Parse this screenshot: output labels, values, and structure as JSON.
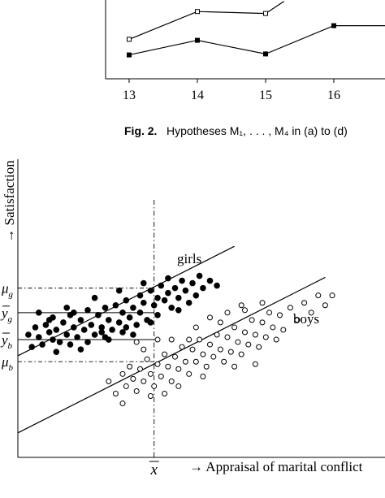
{
  "fig2": {
    "caption_label": "Fig. 2.",
    "caption_text": "Hypotheses M₁, . . . , M₄ in (a) to (d)",
    "x_ticks": [
      "13",
      "14",
      "15",
      "16"
    ],
    "chart_data": {
      "type": "line",
      "categories": [
        13,
        14,
        15,
        16
      ],
      "series": [
        {
          "marker": "open-square",
          "values": [
            1.62,
            2.76,
            2.68,
            3.55
          ]
        },
        {
          "marker": "filled-square",
          "values": [
            0.98,
            1.58,
            1.02,
            2.18
          ]
        }
      ],
      "partial_segment_end": {
        "x": 15.27,
        "y": 3.18
      }
    }
  },
  "fig3": {
    "ylabel": "→ Satisfaction",
    "xlabel": "→ Appraisal of marital conflict",
    "xmean_label": "x",
    "group_labels": {
      "girls": "girls",
      "boys": "boys"
    },
    "level_labels": {
      "mu_g": "μ_g",
      "ybar_g": "y_g",
      "ybar_b": "y_b",
      "mu_b": "μ_b"
    },
    "colors": {
      "girls": "#000000",
      "boys": "#000000"
    },
    "chart_data": {
      "type": "scatter",
      "title": "",
      "xlabel": "→ Appraisal of marital conflict",
      "ylabel": "→ Satisfaction",
      "xlim": [
        0,
        10
      ],
      "ylim": [
        0,
        10
      ],
      "xbar": 3.9,
      "levels": {
        "mu_g": 6.9,
        "ybar_g": 5.9,
        "ybar_b": 4.8,
        "mu_b": 3.9
      },
      "series": [
        {
          "name": "girls",
          "marker": "filled-circle",
          "regression": {
            "intercept": 4.14,
            "slope": 0.72
          },
          "points": [
            [
              0.3,
              5.0
            ],
            [
              0.4,
              4.5
            ],
            [
              0.5,
              5.3
            ],
            [
              0.6,
              4.9
            ],
            [
              0.7,
              4.6
            ],
            [
              0.8,
              5.4
            ],
            [
              0.9,
              5.1
            ],
            [
              1.0,
              4.8
            ],
            [
              1.0,
              5.7
            ],
            [
              1.1,
              5.2
            ],
            [
              1.2,
              4.7
            ],
            [
              1.3,
              5.5
            ],
            [
              1.4,
              5.0
            ],
            [
              1.5,
              5.8
            ],
            [
              1.5,
              4.6
            ],
            [
              1.6,
              5.3
            ],
            [
              1.7,
              4.9
            ],
            [
              1.8,
              5.6
            ],
            [
              1.9,
              5.2
            ],
            [
              2.0,
              4.7
            ],
            [
              2.0,
              6.0
            ],
            [
              2.1,
              5.4
            ],
            [
              2.2,
              5.0
            ],
            [
              2.3,
              5.8
            ],
            [
              2.4,
              5.3
            ],
            [
              2.5,
              6.1
            ],
            [
              2.5,
              4.9
            ],
            [
              2.6,
              5.6
            ],
            [
              2.7,
              5.2
            ],
            [
              2.8,
              6.2
            ],
            [
              2.9,
              5.5
            ],
            [
              3.0,
              5.9
            ],
            [
              3.0,
              5.1
            ],
            [
              3.1,
              6.4
            ],
            [
              3.2,
              5.7
            ],
            [
              3.3,
              6.1
            ],
            [
              3.4,
              5.4
            ],
            [
              3.5,
              6.6
            ],
            [
              3.5,
              5.9
            ],
            [
              3.6,
              6.3
            ],
            [
              3.7,
              5.6
            ],
            [
              3.8,
              6.8
            ],
            [
              3.9,
              6.2
            ],
            [
              4.0,
              6.5
            ],
            [
              4.0,
              5.8
            ],
            [
              4.1,
              7.0
            ],
            [
              4.2,
              6.4
            ],
            [
              4.3,
              6.7
            ],
            [
              4.4,
              6.1
            ],
            [
              4.5,
              6.9
            ],
            [
              4.6,
              6.5
            ],
            [
              4.7,
              7.2
            ],
            [
              4.8,
              6.8
            ],
            [
              4.9,
              6.3
            ],
            [
              5.0,
              7.1
            ],
            [
              5.1,
              6.6
            ],
            [
              5.2,
              7.4
            ],
            [
              5.3,
              6.9
            ],
            [
              5.5,
              7.2
            ],
            [
              5.7,
              7.0
            ],
            [
              0.6,
              5.9
            ],
            [
              1.4,
              6.1
            ],
            [
              2.2,
              6.5
            ],
            [
              2.9,
              6.8
            ],
            [
              3.6,
              7.1
            ],
            [
              4.3,
              7.3
            ],
            [
              1.1,
              4.3
            ],
            [
              1.8,
              4.4
            ],
            [
              2.6,
              4.8
            ],
            [
              3.3,
              5.0
            ],
            [
              0.9,
              5.6
            ],
            [
              1.6,
              5.9
            ],
            [
              2.4,
              5.1
            ],
            [
              3.1,
              5.3
            ],
            [
              3.8,
              5.5
            ],
            [
              4.6,
              6.0
            ]
          ]
        },
        {
          "name": "boys",
          "marker": "open-circle",
          "regression": {
            "intercept": 1.0,
            "slope": 0.72
          },
          "points": [
            [
              2.6,
              3.1
            ],
            [
              2.8,
              2.6
            ],
            [
              3.0,
              3.4
            ],
            [
              3.1,
              2.9
            ],
            [
              3.2,
              3.7
            ],
            [
              3.3,
              3.2
            ],
            [
              3.4,
              2.7
            ],
            [
              3.5,
              3.6
            ],
            [
              3.6,
              3.1
            ],
            [
              3.7,
              4.0
            ],
            [
              3.8,
              3.4
            ],
            [
              3.9,
              2.9
            ],
            [
              4.0,
              3.8
            ],
            [
              4.1,
              3.3
            ],
            [
              4.2,
              4.2
            ],
            [
              4.3,
              3.7
            ],
            [
              4.4,
              3.1
            ],
            [
              4.5,
              4.1
            ],
            [
              4.6,
              3.6
            ],
            [
              4.7,
              4.5
            ],
            [
              4.8,
              3.9
            ],
            [
              4.9,
              3.4
            ],
            [
              5.0,
              4.4
            ],
            [
              5.1,
              3.9
            ],
            [
              5.2,
              4.8
            ],
            [
              5.3,
              4.2
            ],
            [
              5.4,
              3.7
            ],
            [
              5.5,
              4.6
            ],
            [
              5.6,
              4.1
            ],
            [
              5.7,
              5.0
            ],
            [
              5.8,
              4.4
            ],
            [
              5.9,
              3.9
            ],
            [
              6.0,
              4.9
            ],
            [
              6.1,
              4.3
            ],
            [
              6.2,
              5.3
            ],
            [
              6.3,
              4.7
            ],
            [
              6.4,
              4.2
            ],
            [
              6.5,
              5.1
            ],
            [
              6.6,
              4.6
            ],
            [
              6.7,
              5.6
            ],
            [
              6.8,
              5.0
            ],
            [
              6.9,
              4.5
            ],
            [
              7.0,
              5.5
            ],
            [
              7.1,
              4.9
            ],
            [
              7.2,
              5.9
            ],
            [
              7.3,
              5.3
            ],
            [
              7.4,
              4.8
            ],
            [
              7.5,
              5.8
            ],
            [
              7.6,
              5.2
            ],
            [
              7.8,
              6.1
            ],
            [
              8.0,
              5.6
            ],
            [
              8.2,
              6.3
            ],
            [
              8.4,
              5.9
            ],
            [
              8.6,
              6.6
            ],
            [
              8.8,
              6.2
            ],
            [
              9.0,
              6.6
            ],
            [
              3.4,
              4.7
            ],
            [
              4.0,
              4.8
            ],
            [
              4.4,
              4.8
            ],
            [
              4.9,
              4.8
            ],
            [
              5.5,
              5.7
            ],
            [
              6.0,
              5.9
            ],
            [
              6.4,
              6.2
            ],
            [
              3.0,
              2.2
            ],
            [
              3.8,
              2.5
            ],
            [
              4.6,
              2.9
            ],
            [
              5.3,
              3.3
            ],
            [
              6.2,
              3.7
            ],
            [
              6.8,
              3.8
            ],
            [
              5.1,
              5.3
            ],
            [
              5.8,
              5.5
            ],
            [
              6.5,
              6.0
            ],
            [
              7.0,
              6.3
            ],
            [
              3.6,
              4.4
            ],
            [
              4.2,
              2.6
            ]
          ]
        }
      ]
    }
  }
}
